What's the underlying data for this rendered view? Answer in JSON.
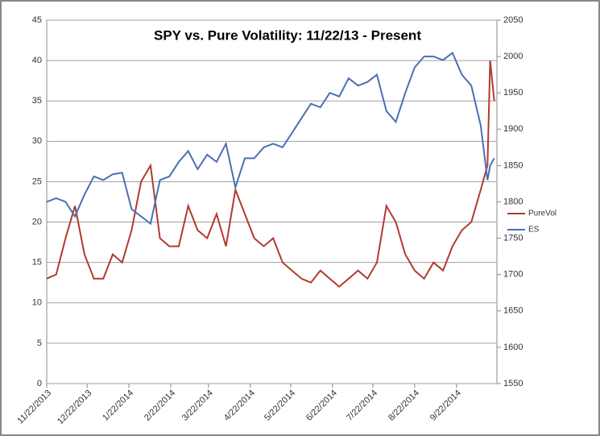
{
  "chart_data": {
    "type": "line",
    "title": "SPY vs. Pure Volatility:  11/22/13 - Present",
    "x": [
      "11/22/2013",
      "11/29/2013",
      "12/6/2013",
      "12/13/2013",
      "12/20/2013",
      "12/27/2013",
      "1/3/2014",
      "1/10/2014",
      "1/17/2014",
      "1/24/2014",
      "1/31/2014",
      "2/7/2014",
      "2/14/2014",
      "2/21/2014",
      "2/28/2014",
      "3/7/2014",
      "3/14/2014",
      "3/21/2014",
      "3/28/2014",
      "4/4/2014",
      "4/11/2014",
      "4/18/2014",
      "4/25/2014",
      "5/2/2014",
      "5/9/2014",
      "5/16/2014",
      "5/23/2014",
      "5/30/2014",
      "6/6/2014",
      "6/13/2014",
      "6/20/2014",
      "6/27/2014",
      "7/4/2014",
      "7/11/2014",
      "7/18/2014",
      "7/25/2014",
      "8/1/2014",
      "8/8/2014",
      "8/15/2014",
      "8/22/2014",
      "8/29/2014",
      "9/5/2014",
      "9/12/2014",
      "9/19/2014",
      "9/26/2014",
      "10/3/2014",
      "10/10/2014",
      "10/15/2014",
      "10/17/2014",
      "10/20/2014"
    ],
    "series": [
      {
        "name": "PureVol",
        "color": "#b23a2e",
        "axis": "y",
        "values": [
          13,
          13.5,
          18,
          22,
          16,
          13,
          13,
          16,
          15,
          19,
          25,
          27,
          18,
          17,
          17,
          22,
          19,
          18,
          21,
          17,
          24,
          21,
          18,
          17,
          18,
          15,
          14,
          13,
          12.5,
          14,
          13,
          12,
          13,
          14,
          13,
          15,
          22,
          20,
          16,
          14,
          13,
          15,
          14,
          17,
          19,
          20,
          24,
          27,
          40,
          35
        ]
      },
      {
        "name": "ES",
        "color": "#4a6fb5",
        "axis": "y2",
        "values": [
          1800,
          1805,
          1800,
          1780,
          1810,
          1835,
          1830,
          1838,
          1840,
          1790,
          1780,
          1770,
          1830,
          1835,
          1855,
          1870,
          1845,
          1865,
          1855,
          1880,
          1820,
          1860,
          1860,
          1875,
          1880,
          1875,
          1895,
          1915,
          1935,
          1930,
          1950,
          1945,
          1970,
          1960,
          1965,
          1975,
          1925,
          1910,
          1950,
          1985,
          2000,
          2000,
          1995,
          2005,
          1975,
          1960,
          1905,
          1830,
          1850,
          1860
        ]
      }
    ],
    "xlim": [
      "11/22/2013",
      "10/22/2014"
    ],
    "xticks": [
      "11/22/2013",
      "12/22/2013",
      "1/22/2014",
      "2/22/2014",
      "3/22/2014",
      "4/22/2014",
      "5/22/2014",
      "6/22/2014",
      "7/22/2014",
      "8/22/2014",
      "9/22/2014"
    ],
    "ylim": [
      0,
      45
    ],
    "yticks": [
      0,
      5,
      10,
      15,
      20,
      25,
      30,
      35,
      40,
      45
    ],
    "y2lim": [
      1550,
      2050
    ],
    "y2ticks": [
      1550,
      1600,
      1650,
      1700,
      1750,
      1800,
      1850,
      1900,
      1950,
      2000,
      2050
    ],
    "grid": true,
    "legend": "right"
  }
}
